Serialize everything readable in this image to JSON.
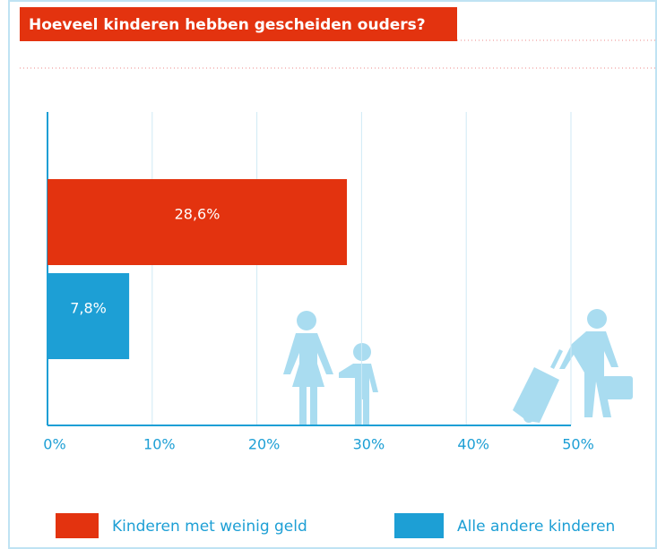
{
  "chart_data": {
    "type": "barh",
    "title": "Hoeveel kinderen hebben gescheiden ouders?",
    "categories": [
      null
    ],
    "series": [
      {
        "name": "Kinderen met weinig geld",
        "color": "#e3330f",
        "values": [
          28.6
        ],
        "value_labels": [
          "28,6%"
        ]
      },
      {
        "name": "Alle andere kinderen",
        "color": "#1d9fd5",
        "values": [
          7.8
        ],
        "value_labels": [
          "7,8%"
        ]
      }
    ],
    "xlim": [
      0,
      50
    ],
    "xticks": [
      {
        "value": 0,
        "label": "0%"
      },
      {
        "value": 10,
        "label": "10%"
      },
      {
        "value": 20,
        "label": "20%"
      },
      {
        "value": 30,
        "label": "30%"
      },
      {
        "value": 40,
        "label": "40%"
      },
      {
        "value": 50,
        "label": "50%"
      }
    ],
    "grid": true,
    "legend": "bottom"
  }
}
